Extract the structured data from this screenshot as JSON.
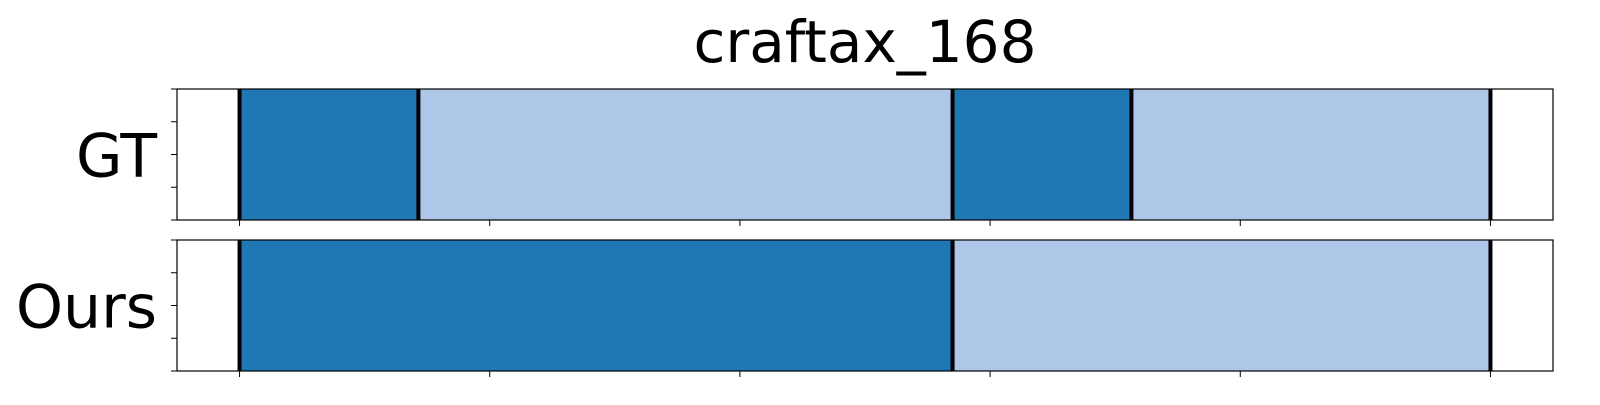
{
  "chart_data": {
    "type": "bar",
    "title": "craftax_168",
    "xlim": [
      0,
      1100
    ],
    "x_ticks": [
      50,
      250,
      450,
      650,
      850,
      1050
    ],
    "rows": [
      {
        "label": "GT",
        "segments": [
          {
            "start": 50,
            "end": 193,
            "color": "#1f77b4"
          },
          {
            "start": 193,
            "end": 620,
            "color": "#aec7e8"
          },
          {
            "start": 620,
            "end": 763,
            "color": "#1f77b4"
          },
          {
            "start": 763,
            "end": 1050,
            "color": "#aec7e8"
          }
        ],
        "boundaries": [
          50,
          193,
          620,
          763,
          1050
        ]
      },
      {
        "label": "Ours",
        "segments": [
          {
            "start": 50,
            "end": 620,
            "color": "#1f77b4"
          },
          {
            "start": 620,
            "end": 1050,
            "color": "#aec7e8"
          }
        ],
        "boundaries": [
          50,
          620,
          1050
        ]
      }
    ]
  }
}
